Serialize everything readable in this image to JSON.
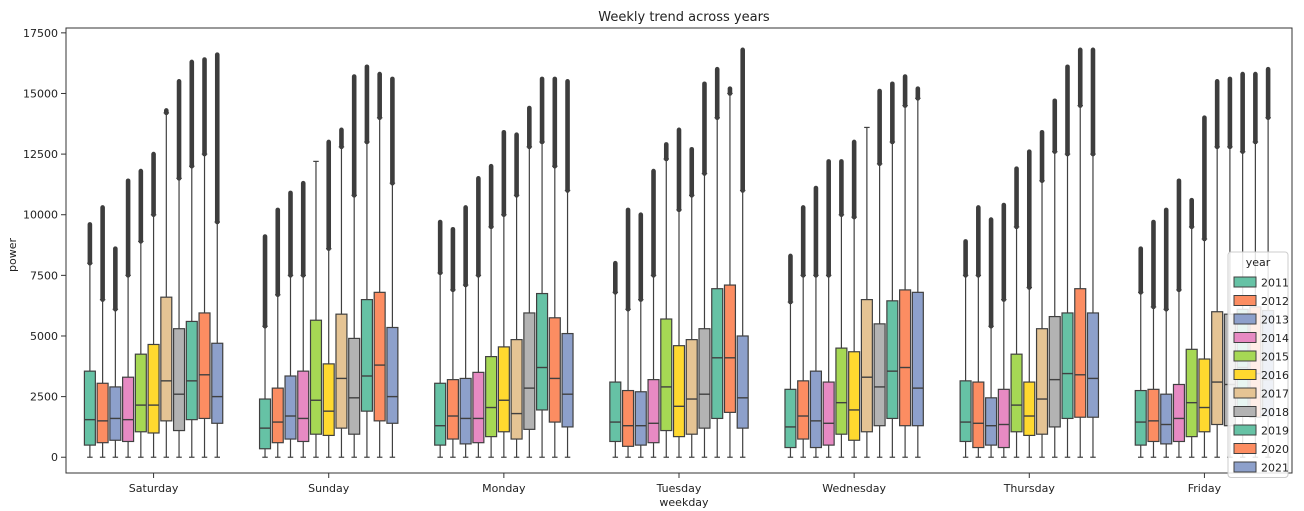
{
  "chart_data": {
    "type": "box",
    "title": "Weekly trend across years",
    "xlabel": "weekday",
    "ylabel": "power",
    "ylim": [
      -650,
      17700
    ],
    "yticks": [
      0,
      2500,
      5000,
      7500,
      10000,
      12500,
      15000,
      17500
    ],
    "ytick_labels": [
      "0",
      "2500",
      "5000",
      "7500",
      "10000",
      "12500",
      "15000",
      "17500"
    ],
    "categories": [
      "Saturday",
      "Sunday",
      "Monday",
      "Tuesday",
      "Wednesday",
      "Thursday",
      "Friday"
    ],
    "legend": {
      "title": "year",
      "placement": "right"
    },
    "colors": [
      "#66c2a5",
      "#fc8d62",
      "#8da0cb",
      "#e78ac3",
      "#a6d854",
      "#ffd92f",
      "#e5c494",
      "#b3b3b3",
      "#66c2a5",
      "#fc8d62",
      "#8da0cb"
    ],
    "series": [
      {
        "name": "2011",
        "boxes": [
          {
            "q1": 500,
            "median": 1550,
            "q3": 3550,
            "whisker_low": 0,
            "whisker_high": 8000,
            "flier_max": 9600
          },
          {
            "q1": 350,
            "median": 1200,
            "q3": 2400,
            "whisker_low": 0,
            "whisker_high": 5400,
            "flier_max": 9100
          },
          {
            "q1": 500,
            "median": 1300,
            "q3": 3050,
            "whisker_low": 0,
            "whisker_high": 7600,
            "flier_max": 9700
          },
          {
            "q1": 650,
            "median": 1450,
            "q3": 3100,
            "whisker_low": 0,
            "whisker_high": 6800,
            "flier_max": 8000
          },
          {
            "q1": 400,
            "median": 1250,
            "q3": 2800,
            "whisker_low": 0,
            "whisker_high": 6400,
            "flier_max": 8300
          },
          {
            "q1": 650,
            "median": 1450,
            "q3": 3150,
            "whisker_low": 0,
            "whisker_high": 7500,
            "flier_max": 8900
          },
          {
            "q1": 500,
            "median": 1450,
            "q3": 2750,
            "whisker_low": 0,
            "whisker_high": 6800,
            "flier_max": 8600
          }
        ]
      },
      {
        "name": "2012",
        "boxes": [
          {
            "q1": 600,
            "median": 1500,
            "q3": 3050,
            "whisker_low": 0,
            "whisker_high": 6500,
            "flier_max": 10300
          },
          {
            "q1": 600,
            "median": 1450,
            "q3": 2850,
            "whisker_low": 0,
            "whisker_high": 6700,
            "flier_max": 10200
          },
          {
            "q1": 750,
            "median": 1700,
            "q3": 3200,
            "whisker_low": 0,
            "whisker_high": 6900,
            "flier_max": 9400
          },
          {
            "q1": 450,
            "median": 1300,
            "q3": 2750,
            "whisker_low": 0,
            "whisker_high": 6100,
            "flier_max": 10200
          },
          {
            "q1": 750,
            "median": 1700,
            "q3": 3150,
            "whisker_low": 0,
            "whisker_high": 7500,
            "flier_max": 10300
          },
          {
            "q1": 400,
            "median": 1400,
            "q3": 3100,
            "whisker_low": 0,
            "whisker_high": 7500,
            "flier_max": 10300
          },
          {
            "q1": 650,
            "median": 1500,
            "q3": 2800,
            "whisker_low": 0,
            "whisker_high": 6200,
            "flier_max": 9700
          }
        ]
      },
      {
        "name": "2013",
        "boxes": [
          {
            "q1": 700,
            "median": 1600,
            "q3": 2900,
            "whisker_low": 0,
            "whisker_high": 6100,
            "flier_max": 8600
          },
          {
            "q1": 750,
            "median": 1700,
            "q3": 3350,
            "whisker_low": 0,
            "whisker_high": 7500,
            "flier_max": 10900
          },
          {
            "q1": 550,
            "median": 1600,
            "q3": 3250,
            "whisker_low": 0,
            "whisker_high": 7100,
            "flier_max": 10300
          },
          {
            "q1": 500,
            "median": 1300,
            "q3": 2700,
            "whisker_low": 0,
            "whisker_high": 6500,
            "flier_max": 10000
          },
          {
            "q1": 400,
            "median": 1500,
            "q3": 3550,
            "whisker_low": 0,
            "whisker_high": 7500,
            "flier_max": 11100
          },
          {
            "q1": 500,
            "median": 1300,
            "q3": 2450,
            "whisker_low": 0,
            "whisker_high": 5400,
            "flier_max": 9800
          },
          {
            "q1": 550,
            "median": 1350,
            "q3": 2600,
            "whisker_low": 0,
            "whisker_high": 6100,
            "flier_max": 10200
          }
        ]
      },
      {
        "name": "2014",
        "boxes": [
          {
            "q1": 650,
            "median": 1550,
            "q3": 3300,
            "whisker_low": 0,
            "whisker_high": 7500,
            "flier_max": 11400
          },
          {
            "q1": 650,
            "median": 1600,
            "q3": 3550,
            "whisker_low": 0,
            "whisker_high": 7500,
            "flier_max": 11300
          },
          {
            "q1": 600,
            "median": 1600,
            "q3": 3500,
            "whisker_low": 0,
            "whisker_high": 7500,
            "flier_max": 11500
          },
          {
            "q1": 600,
            "median": 1400,
            "q3": 3200,
            "whisker_low": 0,
            "whisker_high": 7500,
            "flier_max": 11800
          },
          {
            "q1": 500,
            "median": 1400,
            "q3": 3100,
            "whisker_low": 0,
            "whisker_high": 7500,
            "flier_max": 12200
          },
          {
            "q1": 400,
            "median": 1350,
            "q3": 2800,
            "whisker_low": 0,
            "whisker_high": 6500,
            "flier_max": 10400
          },
          {
            "q1": 650,
            "median": 1600,
            "q3": 3000,
            "whisker_low": 0,
            "whisker_high": 6900,
            "flier_max": 11400
          }
        ]
      },
      {
        "name": "2015",
        "boxes": [
          {
            "q1": 1050,
            "median": 2150,
            "q3": 4250,
            "whisker_low": 0,
            "whisker_high": 8900,
            "flier_max": 11800
          },
          {
            "q1": 950,
            "median": 2350,
            "q3": 5650,
            "whisker_low": 0,
            "whisker_high": 12200,
            "flier_max": 12200
          },
          {
            "q1": 850,
            "median": 2050,
            "q3": 4150,
            "whisker_low": 0,
            "whisker_high": 9500,
            "flier_max": 12000
          },
          {
            "q1": 1100,
            "median": 2900,
            "q3": 5700,
            "whisker_low": 0,
            "whisker_high": 12300,
            "flier_max": 12900
          },
          {
            "q1": 950,
            "median": 2250,
            "q3": 4500,
            "whisker_low": 0,
            "whisker_high": 10000,
            "flier_max": 12200
          },
          {
            "q1": 1050,
            "median": 2150,
            "q3": 4250,
            "whisker_low": 0,
            "whisker_high": 9500,
            "flier_max": 11900
          },
          {
            "q1": 850,
            "median": 2250,
            "q3": 4450,
            "whisker_low": 0,
            "whisker_high": 9500,
            "flier_max": 10600
          }
        ]
      },
      {
        "name": "2016",
        "boxes": [
          {
            "q1": 1000,
            "median": 2150,
            "q3": 4650,
            "whisker_low": 0,
            "whisker_high": 10000,
            "flier_max": 12500
          },
          {
            "q1": 900,
            "median": 1900,
            "q3": 3850,
            "whisker_low": 0,
            "whisker_high": 8600,
            "flier_max": 13000
          },
          {
            "q1": 1050,
            "median": 2350,
            "q3": 4550,
            "whisker_low": 0,
            "whisker_high": 10000,
            "flier_max": 13400
          },
          {
            "q1": 850,
            "median": 2100,
            "q3": 4600,
            "whisker_low": 0,
            "whisker_high": 10200,
            "flier_max": 13500
          },
          {
            "q1": 700,
            "median": 1950,
            "q3": 4350,
            "whisker_low": 0,
            "whisker_high": 9900,
            "flier_max": 13000
          },
          {
            "q1": 900,
            "median": 1700,
            "q3": 3100,
            "whisker_low": 0,
            "whisker_high": 7000,
            "flier_max": 12600
          },
          {
            "q1": 1050,
            "median": 2050,
            "q3": 4050,
            "whisker_low": 0,
            "whisker_high": 9000,
            "flier_max": 14000
          }
        ]
      },
      {
        "name": "2017",
        "boxes": [
          {
            "q1": 1500,
            "median": 3150,
            "q3": 6600,
            "whisker_low": 0,
            "whisker_high": 14200,
            "flier_max": 14300
          },
          {
            "q1": 1200,
            "median": 3250,
            "q3": 5900,
            "whisker_low": 0,
            "whisker_high": 12800,
            "flier_max": 13500
          },
          {
            "q1": 750,
            "median": 1800,
            "q3": 4850,
            "whisker_low": 0,
            "whisker_high": 10800,
            "flier_max": 13300
          },
          {
            "q1": 950,
            "median": 2400,
            "q3": 4850,
            "whisker_low": 0,
            "whisker_high": 10800,
            "flier_max": 12700
          },
          {
            "q1": 1050,
            "median": 3300,
            "q3": 6500,
            "whisker_low": 0,
            "whisker_high": 13600,
            "flier_max": 13600
          },
          {
            "q1": 950,
            "median": 2400,
            "q3": 5300,
            "whisker_low": 0,
            "whisker_high": 11400,
            "flier_max": 13400
          },
          {
            "q1": 1350,
            "median": 3100,
            "q3": 6000,
            "whisker_low": 0,
            "whisker_high": 12800,
            "flier_max": 15500
          }
        ]
      },
      {
        "name": "2018",
        "boxes": [
          {
            "q1": 1100,
            "median": 2600,
            "q3": 5300,
            "whisker_low": 0,
            "whisker_high": 11500,
            "flier_max": 15500
          },
          {
            "q1": 950,
            "median": 2450,
            "q3": 4900,
            "whisker_low": 0,
            "whisker_high": 10800,
            "flier_max": 15700
          },
          {
            "q1": 1150,
            "median": 2850,
            "q3": 5950,
            "whisker_low": 0,
            "whisker_high": 12800,
            "flier_max": 14400
          },
          {
            "q1": 1200,
            "median": 2600,
            "q3": 5300,
            "whisker_low": 0,
            "whisker_high": 11700,
            "flier_max": 15400
          },
          {
            "q1": 1300,
            "median": 2900,
            "q3": 5500,
            "whisker_low": 0,
            "whisker_high": 12100,
            "flier_max": 15100
          },
          {
            "q1": 1250,
            "median": 3200,
            "q3": 5800,
            "whisker_low": 0,
            "whisker_high": 12600,
            "flier_max": 14700
          },
          {
            "q1": 1300,
            "median": 3000,
            "q3": 5900,
            "whisker_low": 0,
            "whisker_high": 12800,
            "flier_max": 15600
          }
        ]
      },
      {
        "name": "2019",
        "boxes": [
          {
            "q1": 1550,
            "median": 3150,
            "q3": 5600,
            "whisker_low": 0,
            "whisker_high": 12000,
            "flier_max": 16300
          },
          {
            "q1": 1900,
            "median": 3350,
            "q3": 6500,
            "whisker_low": 0,
            "whisker_high": 13000,
            "flier_max": 16100
          },
          {
            "q1": 1950,
            "median": 3700,
            "q3": 6750,
            "whisker_low": 0,
            "whisker_high": 13000,
            "flier_max": 15600
          },
          {
            "q1": 1600,
            "median": 4100,
            "q3": 6950,
            "whisker_low": 0,
            "whisker_high": 14000,
            "flier_max": 16000
          },
          {
            "q1": 1600,
            "median": 3550,
            "q3": 6450,
            "whisker_low": 0,
            "whisker_high": 13000,
            "flier_max": 15400
          },
          {
            "q1": 1600,
            "median": 3450,
            "q3": 5950,
            "whisker_low": 0,
            "whisker_high": 12500,
            "flier_max": 16100
          },
          {
            "q1": 1800,
            "median": 3700,
            "q3": 6100,
            "whisker_low": 0,
            "whisker_high": 12600,
            "flier_max": 15800
          }
        ]
      },
      {
        "name": "2020",
        "boxes": [
          {
            "q1": 1600,
            "median": 3400,
            "q3": 5950,
            "whisker_low": 0,
            "whisker_high": 12500,
            "flier_max": 16400
          },
          {
            "q1": 1500,
            "median": 3800,
            "q3": 6800,
            "whisker_low": 0,
            "whisker_high": 14000,
            "flier_max": 15800
          },
          {
            "q1": 1450,
            "median": 3250,
            "q3": 5750,
            "whisker_low": 0,
            "whisker_high": 12000,
            "flier_max": 15600
          },
          {
            "q1": 1850,
            "median": 4100,
            "q3": 7100,
            "whisker_low": 0,
            "whisker_high": 15000,
            "flier_max": 15200
          },
          {
            "q1": 1300,
            "median": 3700,
            "q3": 6900,
            "whisker_low": 0,
            "whisker_high": 14500,
            "flier_max": 15700
          },
          {
            "q1": 1650,
            "median": 3400,
            "q3": 6950,
            "whisker_low": 0,
            "whisker_high": 14500,
            "flier_max": 16800
          },
          {
            "q1": 1650,
            "median": 3450,
            "q3": 6200,
            "whisker_low": 0,
            "whisker_high": 13000,
            "flier_max": 15800
          }
        ]
      },
      {
        "name": "2021",
        "boxes": [
          {
            "q1": 1400,
            "median": 2500,
            "q3": 4700,
            "whisker_low": 0,
            "whisker_high": 9700,
            "flier_max": 16600
          },
          {
            "q1": 1400,
            "median": 2500,
            "q3": 5350,
            "whisker_low": 0,
            "whisker_high": 11300,
            "flier_max": 15600
          },
          {
            "q1": 1250,
            "median": 2600,
            "q3": 5100,
            "whisker_low": 0,
            "whisker_high": 11000,
            "flier_max": 15500
          },
          {
            "q1": 1200,
            "median": 2450,
            "q3": 5000,
            "whisker_low": 0,
            "whisker_high": 11000,
            "flier_max": 16800
          },
          {
            "q1": 1300,
            "median": 2850,
            "q3": 6800,
            "whisker_low": 0,
            "whisker_high": 14800,
            "flier_max": 15200
          },
          {
            "q1": 1650,
            "median": 3250,
            "q3": 5950,
            "whisker_low": 0,
            "whisker_high": 12500,
            "flier_max": 16800
          },
          {
            "q1": 1700,
            "median": 3200,
            "q3": 6050,
            "whisker_low": 0,
            "whisker_high": 14000,
            "flier_max": 16000
          }
        ]
      }
    ]
  }
}
